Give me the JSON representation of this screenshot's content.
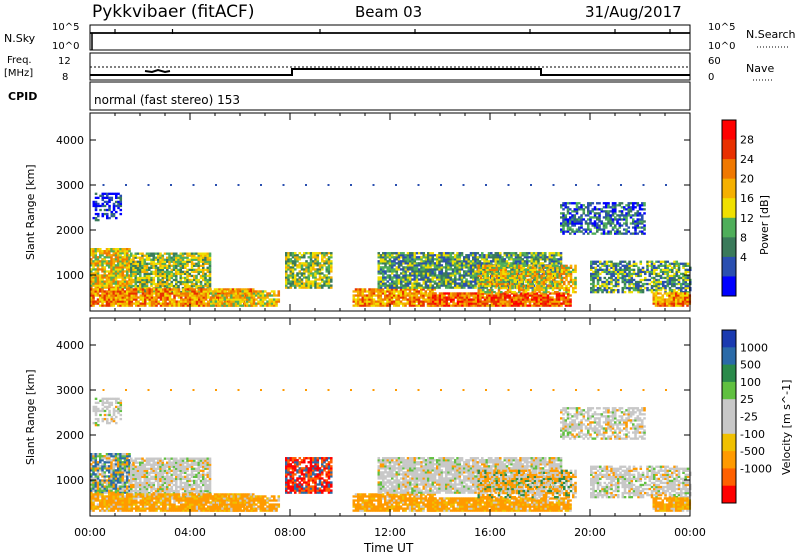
{
  "header": {
    "station": "Pykkvibaer (fitACF)",
    "beam": "Beam 03",
    "date": "31/Aug/2017"
  },
  "strips": {
    "nsky_label": "N.Sky",
    "nsky_ticks": [
      "10^5",
      "10^0"
    ],
    "nsearch_label": "N.Search",
    "nsearch_ticks": [
      "10^5",
      "10^0"
    ],
    "freq_label": "Freq.",
    "freq_unit": "[MHz]",
    "freq_ticks": [
      "12",
      "8"
    ],
    "nave_label": "Nave",
    "nave_ticks": [
      "60",
      "0"
    ],
    "cpid_label": "CPID",
    "cpid_text": "normal (fast stereo) 153"
  },
  "colors": {
    "power": [
      "#0000ff",
      "#2a4fb0",
      "#3a7a5a",
      "#4fae5a",
      "#f0e000",
      "#f5b000",
      "#f07800",
      "#e83000",
      "#ff0000"
    ],
    "velocity": [
      "#ff0000",
      "#ff6000",
      "#ff9a00",
      "#f0c000",
      "#c8c8c8",
      "#c8c8c8",
      "#60c040",
      "#2a8a4a",
      "#2a6aa8",
      "#1a3ab0"
    ]
  },
  "chart_data": [
    {
      "type": "heatmap",
      "name": "power",
      "ylabel": "Slant Range [km]",
      "yticks": [
        "1000",
        "2000",
        "3000",
        "4000"
      ],
      "ylim": [
        200,
        4600
      ],
      "xlim": [
        0,
        24
      ],
      "colorbar_label": "Power [dB]",
      "colorbar_ticks": [
        "4",
        "8",
        "12",
        "16",
        "20",
        "24",
        "28"
      ],
      "colorbar_range": [
        0,
        32
      ]
    },
    {
      "type": "heatmap",
      "name": "velocity",
      "ylabel": "Slant Range [km]",
      "yticks": [
        "1000",
        "2000",
        "3000",
        "4000"
      ],
      "ylim": [
        200,
        4600
      ],
      "xlim": [
        0,
        24
      ],
      "colorbar_label": "Velocity [m s^-1]",
      "colorbar_ticks": [
        "1000",
        "500",
        "100",
        "25",
        "-25",
        "-100",
        "-500",
        "-1000"
      ]
    }
  ],
  "xaxis": {
    "ticks": [
      "00:00",
      "04:00",
      "08:00",
      "12:00",
      "16:00",
      "20:00",
      "00:00"
    ],
    "label": "Time UT"
  }
}
